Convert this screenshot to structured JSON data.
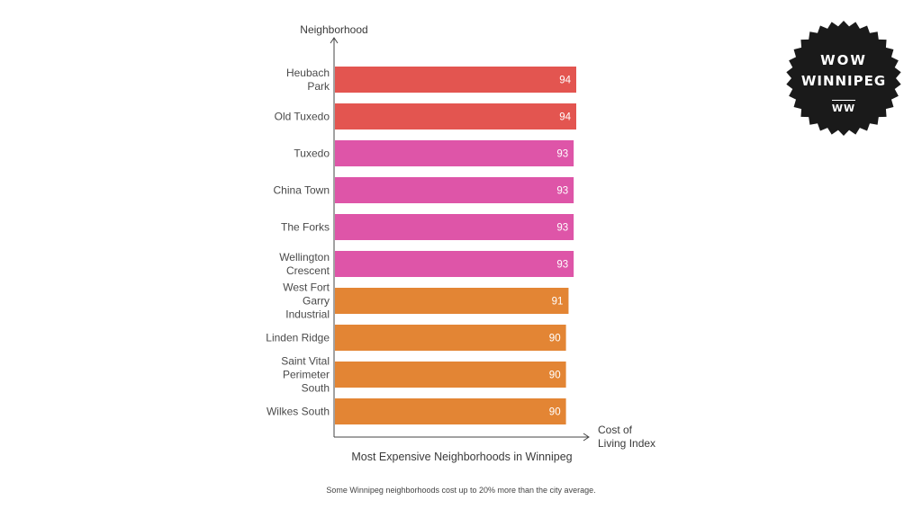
{
  "chart_data": {
    "type": "bar",
    "orientation": "horizontal",
    "ylabel": "Neighborhood",
    "xlabel": "Cost of Living Index",
    "xlabel_lines": [
      "Cost of",
      "Living Index"
    ],
    "title": "Most Expensive Neighborhoods in Winnipeg",
    "xlim": [
      0,
      94
    ],
    "categories": [
      "Heubach Park",
      "Old Tuxedo",
      "Tuxedo",
      "China Town",
      "The Forks",
      "Wellington Crescent",
      "West Fort Garry Industrial",
      "Linden Ridge",
      "Saint Vital Perimeter South",
      "Wilkes South"
    ],
    "category_lines": [
      [
        "Heubach",
        "Park"
      ],
      [
        "Old Tuxedo"
      ],
      [
        "Tuxedo"
      ],
      [
        "China Town"
      ],
      [
        "The Forks"
      ],
      [
        "Wellington",
        "Crescent"
      ],
      [
        "West Fort",
        "Garry",
        "Industrial"
      ],
      [
        "Linden Ridge"
      ],
      [
        "Saint Vital",
        "Perimeter",
        "South"
      ],
      [
        "Wilkes South"
      ]
    ],
    "values": [
      94,
      94,
      93,
      93,
      93,
      93,
      91,
      90,
      90,
      90
    ],
    "colors": [
      "#e35550",
      "#e35550",
      "#de55a8",
      "#de55a8",
      "#de55a8",
      "#de55a8",
      "#e38534",
      "#e38534",
      "#e38534",
      "#e38534"
    ],
    "grid": false,
    "legend": "none"
  },
  "caption": "Some Winnipeg neighborhoods cost up to 20% more than the city average.",
  "badge": {
    "line1": "WOW",
    "line2": "WINNIPEG",
    "line3": "WW",
    "color": "#1a1a1a"
  }
}
